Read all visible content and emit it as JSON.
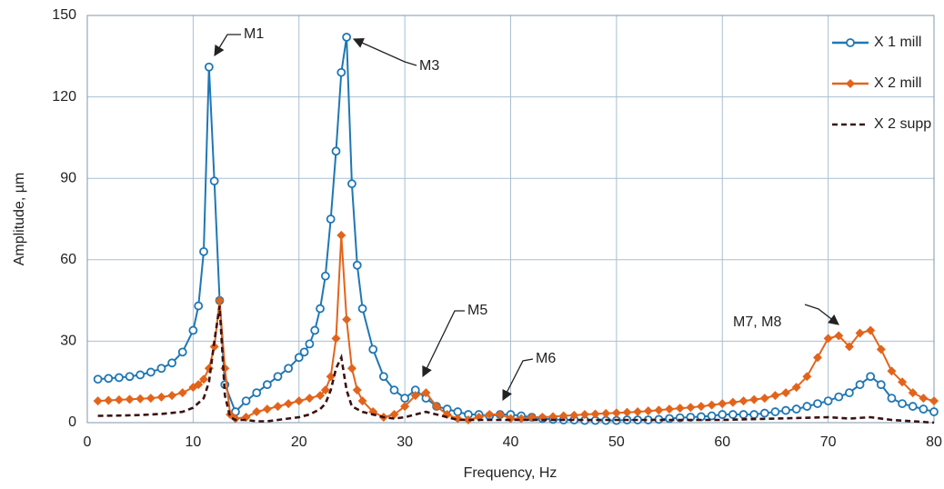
{
  "chart_data": {
    "type": "line",
    "x_label": "Frequency, Hz",
    "y_label": "Amplitude, µm",
    "xlim": [
      0,
      80
    ],
    "xticks": [
      0,
      10,
      20,
      30,
      40,
      50,
      60,
      70,
      80
    ],
    "ylim": [
      0,
      150
    ],
    "yticks": [
      0,
      30,
      60,
      90,
      120,
      150
    ],
    "grid": true,
    "legend": "upper right",
    "annotations": [
      "M1",
      "M3",
      "M5",
      "M6",
      "M7, M8"
    ],
    "series": [
      {
        "name": "X 1 mill",
        "color": "#1f77b4",
        "marker": "circle",
        "x": [
          1,
          2,
          3,
          4,
          5,
          6,
          7,
          8,
          9,
          10,
          10.5,
          11,
          11.5,
          12,
          12.5,
          13,
          14,
          15,
          16,
          17,
          18,
          19,
          20,
          20.5,
          21,
          21.5,
          22,
          22.5,
          23,
          23.5,
          24,
          24.5,
          25,
          25.5,
          26,
          27,
          28,
          29,
          30,
          31,
          32,
          33,
          34,
          35,
          36,
          37,
          38,
          39,
          40,
          41,
          42,
          43,
          44,
          45,
          46,
          47,
          48,
          49,
          50,
          51,
          52,
          53,
          54,
          55,
          56,
          57,
          58,
          59,
          60,
          61,
          62,
          63,
          64,
          65,
          66,
          67,
          68,
          69,
          70,
          71,
          72,
          73,
          74,
          75,
          76,
          77,
          78,
          79,
          80
        ],
        "values": [
          16,
          16.3,
          16.6,
          17,
          17.6,
          18.6,
          20,
          22,
          26,
          34,
          43,
          63,
          131,
          89,
          45,
          14,
          4,
          8,
          11,
          14,
          17,
          20,
          24,
          26,
          29,
          34,
          42,
          54,
          75,
          100,
          129,
          142,
          88,
          58,
          42,
          27,
          17,
          12,
          9,
          12,
          9,
          6,
          5,
          4,
          3,
          3,
          2.5,
          3,
          3,
          2.5,
          2,
          1.5,
          1.2,
          1,
          1,
          0.8,
          0.8,
          0.8,
          0.8,
          1,
          1,
          1,
          1.2,
          1.5,
          1.8,
          2,
          2.2,
          2.5,
          3,
          3,
          3,
          3,
          3.5,
          4,
          4.5,
          5,
          6,
          7,
          8,
          9.5,
          11,
          14,
          17,
          14,
          9,
          7,
          6,
          5,
          4
        ]
      },
      {
        "name": "X 2 mill",
        "color": "#e2641c",
        "marker": "diamond",
        "x": [
          1,
          2,
          3,
          4,
          5,
          6,
          7,
          8,
          9,
          10,
          10.5,
          11,
          11.5,
          12,
          12.5,
          13,
          13.5,
          14,
          15,
          16,
          17,
          18,
          19,
          20,
          21,
          22,
          22.5,
          23,
          23.5,
          24,
          24.5,
          25,
          25.5,
          26,
          27,
          28,
          29,
          30,
          31,
          32,
          33,
          34,
          35,
          36,
          37,
          38,
          39,
          40,
          41,
          42,
          43,
          44,
          45,
          46,
          47,
          48,
          49,
          50,
          51,
          52,
          53,
          54,
          55,
          56,
          57,
          58,
          59,
          60,
          61,
          62,
          63,
          64,
          65,
          66,
          67,
          68,
          69,
          70,
          71,
          72,
          73,
          74,
          75,
          76,
          77,
          78,
          79,
          80
        ],
        "values": [
          8,
          8.2,
          8.4,
          8.6,
          8.8,
          9,
          9.4,
          10,
          11,
          13,
          14,
          16,
          20,
          28,
          45,
          20,
          3,
          1.5,
          2,
          4,
          5,
          6,
          7,
          8,
          9,
          10,
          12,
          17,
          31,
          69,
          38,
          20,
          12,
          8,
          4,
          2,
          3,
          6,
          10,
          11,
          6,
          3,
          1.5,
          1,
          2,
          3,
          3,
          1.5,
          1.5,
          2,
          2,
          2.2,
          2.5,
          2.7,
          3,
          3.2,
          3.4,
          3.6,
          3.8,
          4,
          4.3,
          4.6,
          5,
          5.3,
          5.6,
          6,
          6.5,
          7,
          7.5,
          8,
          8.5,
          9,
          10,
          11,
          13,
          17,
          24,
          31,
          32,
          28,
          33,
          34,
          27,
          19,
          15,
          11,
          9,
          8
        ]
      },
      {
        "name": "X 2 supp",
        "color": "#3b1212",
        "marker": "none",
        "x": [
          1,
          3,
          5,
          7,
          9,
          10,
          11,
          11.5,
          12,
          12.5,
          13,
          13.5,
          14,
          15,
          16,
          17,
          18,
          19,
          20,
          21,
          22,
          22.5,
          23,
          23.5,
          24,
          24.5,
          25,
          26,
          27,
          28,
          29,
          30,
          31,
          32,
          33,
          34,
          35,
          40,
          50,
          60,
          70,
          72,
          74,
          76,
          80
        ],
        "values": [
          2.5,
          2.6,
          2.8,
          3.2,
          4,
          5.5,
          9,
          15,
          30,
          43,
          10,
          2,
          1,
          1,
          0.5,
          0.5,
          1,
          1.5,
          2,
          3,
          5,
          7,
          12,
          20,
          24,
          12,
          6,
          4,
          3,
          2,
          1.5,
          2,
          3,
          4,
          3,
          2,
          1,
          1,
          1,
          1,
          2,
          1.5,
          2,
          1,
          0
        ]
      }
    ]
  }
}
